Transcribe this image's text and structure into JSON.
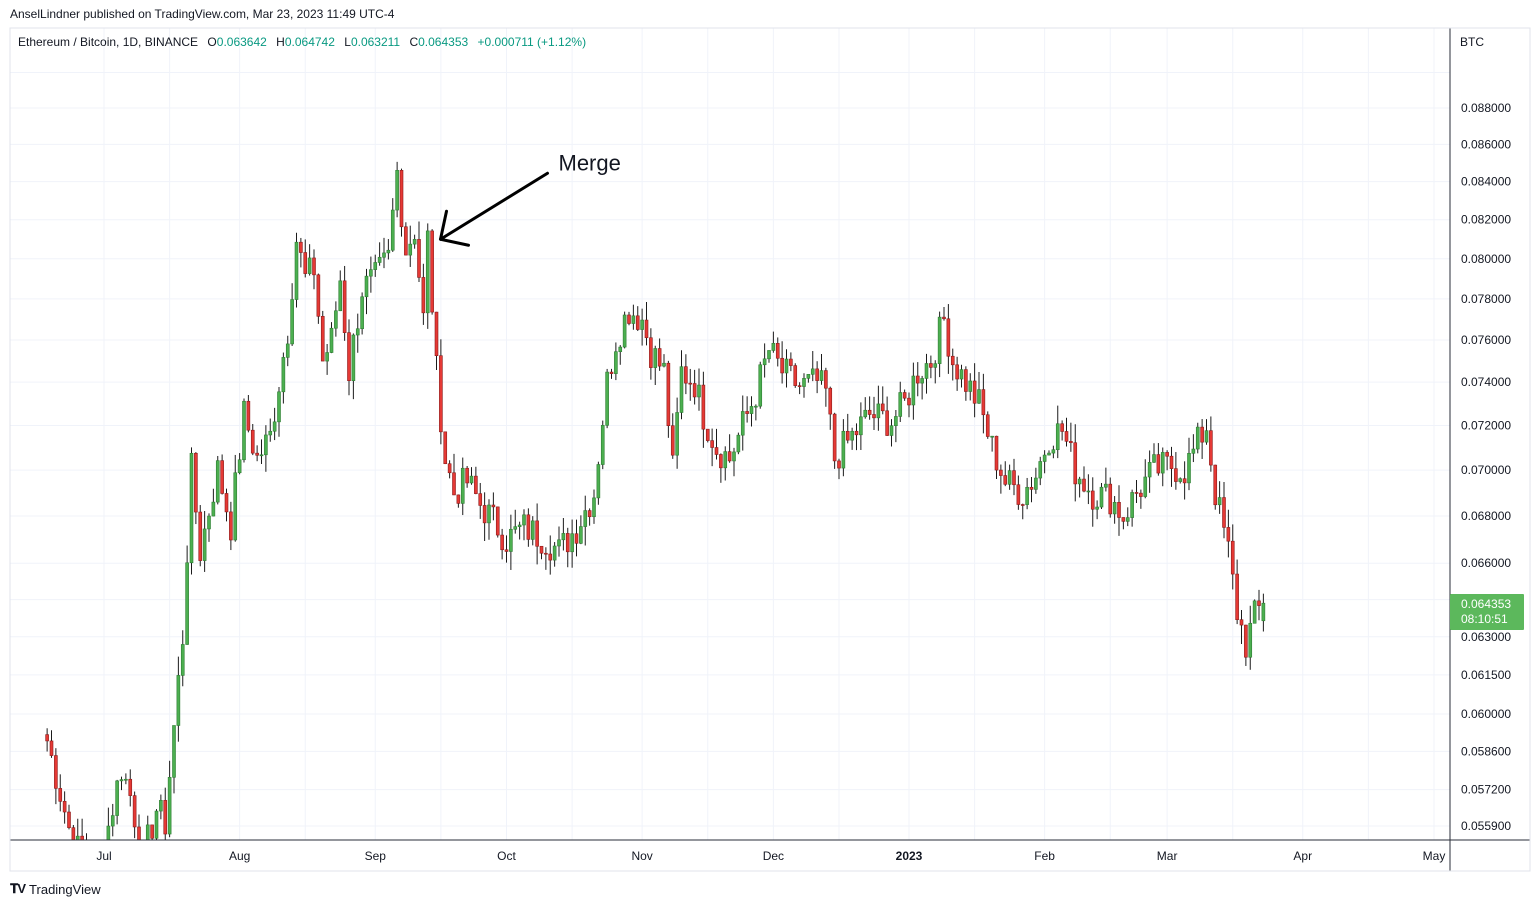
{
  "header": {
    "publisher_line": "AnselLindner published on TradingView.com, Mar 23, 2023 11:49 UTC-4"
  },
  "legend": {
    "symbol": "Ethereum / Bitcoin, 1D, BINANCE",
    "open_label": "O",
    "open": "0.063642",
    "high_label": "H",
    "high": "0.064742",
    "low_label": "L",
    "low": "0.063211",
    "close_label": "C",
    "close": "0.064353",
    "change": "+0.000711 (+1.12%)"
  },
  "price_axis": {
    "currency": "BTC",
    "last_price": "0.064353",
    "countdown": "08:10:51"
  },
  "footer": {
    "brand": "TradingView"
  },
  "colors": {
    "up": "#089981",
    "down": "#f23645",
    "up_fill": "#4caf50",
    "down_fill": "#e53935",
    "badge": "#5cb85c",
    "grid": "#f0f3fa"
  },
  "chart_data": {
    "type": "candlestick",
    "title": "Ethereum / Bitcoin, 1D, BINANCE",
    "y_scale": "log",
    "ylim": [
      0.0552,
      0.0905
    ],
    "y_ticks": [
      "0.088000",
      "0.086000",
      "0.084000",
      "0.082000",
      "0.080000",
      "0.078000",
      "0.076000",
      "0.074000",
      "0.072000",
      "0.070000",
      "0.068000",
      "0.066000",
      "0.063000",
      "0.061500",
      "0.060000",
      "0.058600",
      "0.057200",
      "0.055900"
    ],
    "x_ticks": [
      "Jul",
      "Aug",
      "Sep",
      "Oct",
      "Nov",
      "Dec",
      "2023",
      "Feb",
      "Mar",
      "Apr",
      "May"
    ],
    "x_tick_dates": [
      "2022-07-01",
      "2022-08-01",
      "2022-09-01",
      "2022-10-01",
      "2022-11-01",
      "2022-12-01",
      "2023-01-01",
      "2023-02-01",
      "2023-03-01",
      "2023-04-01",
      "2023-05-01"
    ],
    "start_date": "2022-06-18",
    "end_date": "2023-03-23",
    "anchors": [
      [
        "2022-06-18",
        0.059
      ],
      [
        "2022-06-24",
        0.0552
      ],
      [
        "2022-06-30",
        0.0545
      ],
      [
        "2022-07-05",
        0.058
      ],
      [
        "2022-07-07",
        0.057
      ],
      [
        "2022-07-10",
        0.0548
      ],
      [
        "2022-07-13",
        0.0565
      ],
      [
        "2022-07-15",
        0.056
      ],
      [
        "2022-07-19",
        0.063
      ],
      [
        "2022-07-21",
        0.07
      ],
      [
        "2022-07-23",
        0.0665
      ],
      [
        "2022-07-27",
        0.07
      ],
      [
        "2022-07-30",
        0.0676
      ],
      [
        "2022-08-02",
        0.0725
      ],
      [
        "2022-08-05",
        0.0705
      ],
      [
        "2022-08-08",
        0.0715
      ],
      [
        "2022-08-10",
        0.074
      ],
      [
        "2022-08-12",
        0.0765
      ],
      [
        "2022-08-14",
        0.081
      ],
      [
        "2022-08-16",
        0.079
      ],
      [
        "2022-08-18",
        0.0795
      ],
      [
        "2022-08-20",
        0.075
      ],
      [
        "2022-08-22",
        0.076
      ],
      [
        "2022-08-24",
        0.079
      ],
      [
        "2022-08-26",
        0.0745
      ],
      [
        "2022-08-29",
        0.0785
      ],
      [
        "2022-09-01",
        0.079
      ],
      [
        "2022-09-04",
        0.08
      ],
      [
        "2022-09-06",
        0.0845
      ],
      [
        "2022-09-08",
        0.0805
      ],
      [
        "2022-09-10",
        0.0815
      ],
      [
        "2022-09-12",
        0.077
      ],
      [
        "2022-09-13",
        0.081
      ],
      [
        "2022-09-15",
        0.0745
      ],
      [
        "2022-09-17",
        0.0705
      ],
      [
        "2022-09-19",
        0.069
      ],
      [
        "2022-09-22",
        0.0695
      ],
      [
        "2022-09-25",
        0.0685
      ],
      [
        "2022-09-28",
        0.0678
      ],
      [
        "2022-10-01",
        0.067
      ],
      [
        "2022-10-05",
        0.0675
      ],
      [
        "2022-10-10",
        0.067
      ],
      [
        "2022-10-13",
        0.0665
      ],
      [
        "2022-10-17",
        0.0675
      ],
      [
        "2022-10-21",
        0.069
      ],
      [
        "2022-10-24",
        0.074
      ],
      [
        "2022-10-26",
        0.076
      ],
      [
        "2022-10-29",
        0.0775
      ],
      [
        "2022-11-01",
        0.077
      ],
      [
        "2022-11-03",
        0.0755
      ],
      [
        "2022-11-06",
        0.0745
      ],
      [
        "2022-11-08",
        0.07
      ],
      [
        "2022-11-10",
        0.0745
      ],
      [
        "2022-11-13",
        0.074
      ],
      [
        "2022-11-15",
        0.0725
      ],
      [
        "2022-11-18",
        0.071
      ],
      [
        "2022-11-21",
        0.0705
      ],
      [
        "2022-11-24",
        0.072
      ],
      [
        "2022-11-27",
        0.0735
      ],
      [
        "2022-11-30",
        0.0755
      ],
      [
        "2022-12-03",
        0.0745
      ],
      [
        "2022-12-07",
        0.0738
      ],
      [
        "2022-12-11",
        0.074
      ],
      [
        "2022-12-13",
        0.0735
      ],
      [
        "2022-12-15",
        0.0705
      ],
      [
        "2022-12-19",
        0.0715
      ],
      [
        "2022-12-23",
        0.0725
      ],
      [
        "2022-12-28",
        0.0722
      ],
      [
        "2022-12-31",
        0.073
      ],
      [
        "2023-01-03",
        0.0745
      ],
      [
        "2023-01-06",
        0.075
      ],
      [
        "2023-01-09",
        0.077
      ],
      [
        "2023-01-11",
        0.075
      ],
      [
        "2023-01-14",
        0.074
      ],
      [
        "2023-01-17",
        0.073
      ],
      [
        "2023-01-20",
        0.071
      ],
      [
        "2023-01-23",
        0.0695
      ],
      [
        "2023-01-27",
        0.069
      ],
      [
        "2023-01-30",
        0.0698
      ],
      [
        "2023-02-02",
        0.0715
      ],
      [
        "2023-02-05",
        0.0718
      ],
      [
        "2023-02-08",
        0.07
      ],
      [
        "2023-02-12",
        0.069
      ],
      [
        "2023-02-16",
        0.0688
      ],
      [
        "2023-02-19",
        0.068
      ],
      [
        "2023-02-22",
        0.069
      ],
      [
        "2023-02-26",
        0.07
      ],
      [
        "2023-03-02",
        0.0702
      ],
      [
        "2023-03-05",
        0.07
      ],
      [
        "2023-03-08",
        0.0712
      ],
      [
        "2023-03-10",
        0.072
      ],
      [
        "2023-03-12",
        0.069
      ],
      [
        "2023-03-15",
        0.0665
      ],
      [
        "2023-03-17",
        0.064
      ],
      [
        "2023-03-19",
        0.0627
      ],
      [
        "2023-03-21",
        0.0638
      ],
      [
        "2023-03-23",
        0.0644
      ]
    ],
    "last_candle": {
      "date": "2023-03-23",
      "open": 0.063642,
      "high": 0.064742,
      "low": 0.063211,
      "close": 0.064353
    },
    "annotations": [
      {
        "text": "Merge",
        "date": "2022-09-15",
        "price": 0.0812,
        "type": "arrow"
      }
    ]
  }
}
